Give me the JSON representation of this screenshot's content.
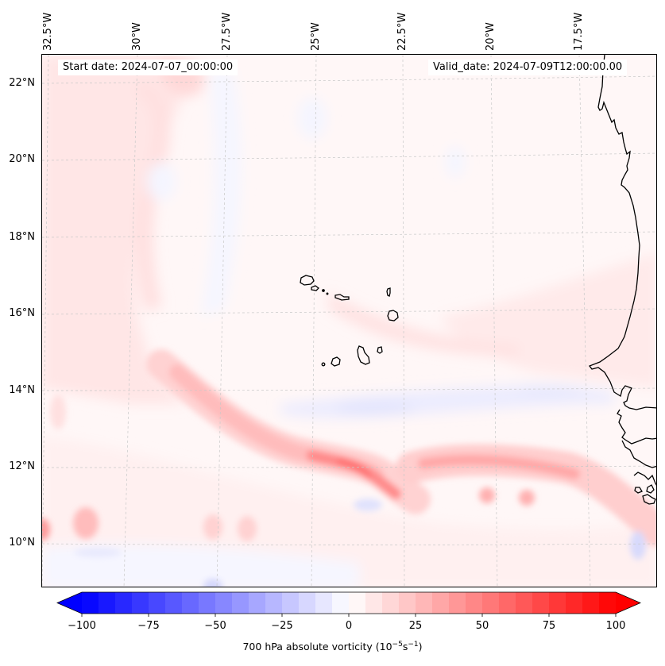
{
  "header": {
    "start_date": "Start date: 2024-07-07_00:00:00",
    "valid_date": "Valid_date: 2024-07-09T12:00:00.00"
  },
  "axes": {
    "longitude_labels": [
      "32.5°W",
      "30°W",
      "27.5°W",
      "25°W",
      "22.5°W",
      "20°W",
      "17.5°W"
    ],
    "latitude_labels": [
      "22°N",
      "20°N",
      "18°N",
      "16°N",
      "14°N",
      "12°N",
      "10°N"
    ],
    "extent": {
      "lon_min": -32.6,
      "lon_max": -15.2,
      "lat_min": 8.9,
      "lat_max": 22.7
    }
  },
  "field": {
    "variable": "700 hPa absolute vorticity",
    "units_base": "10",
    "units_exp1": "−5",
    "units_mid": "s",
    "units_exp2": "−1",
    "features": [
      {
        "name": "easterly-wave-trough-west",
        "description": "SW-NE oriented positive vorticity band from ~29°W 14°N to ~23°W 11.5°N",
        "peak_value": 55
      },
      {
        "name": "easterly-wave-trough-east",
        "description": "Zonal positive vorticity band ~11.7°N from ~23°W to ~16°W",
        "peak_value": 40
      },
      {
        "name": "weak-negative-band",
        "description": "Weak negative vorticity band near 13.5°N, 25°W-18°W",
        "peak_value": -15
      }
    ]
  },
  "land": {
    "islands": "Cape Verde",
    "coastline": "West Africa (Mauritania, Senegal, Gambia, Guinea-Bissau)"
  },
  "colorbar": {
    "min": -100,
    "max": 100,
    "n_levels": 32,
    "extend": "both",
    "cmap": "bwr",
    "ticks": [
      "−100",
      "−75",
      "−50",
      "−25",
      "0",
      "25",
      "50",
      "75",
      "100"
    ],
    "label_prefix": "700 hPa absolute vorticity ("
  },
  "colors": {
    "negative_max": "#0000ff",
    "neutral": "#ffffff",
    "positive_max": "#ff0000",
    "coastline": "#000000",
    "gridline": "#b0b0b0"
  }
}
